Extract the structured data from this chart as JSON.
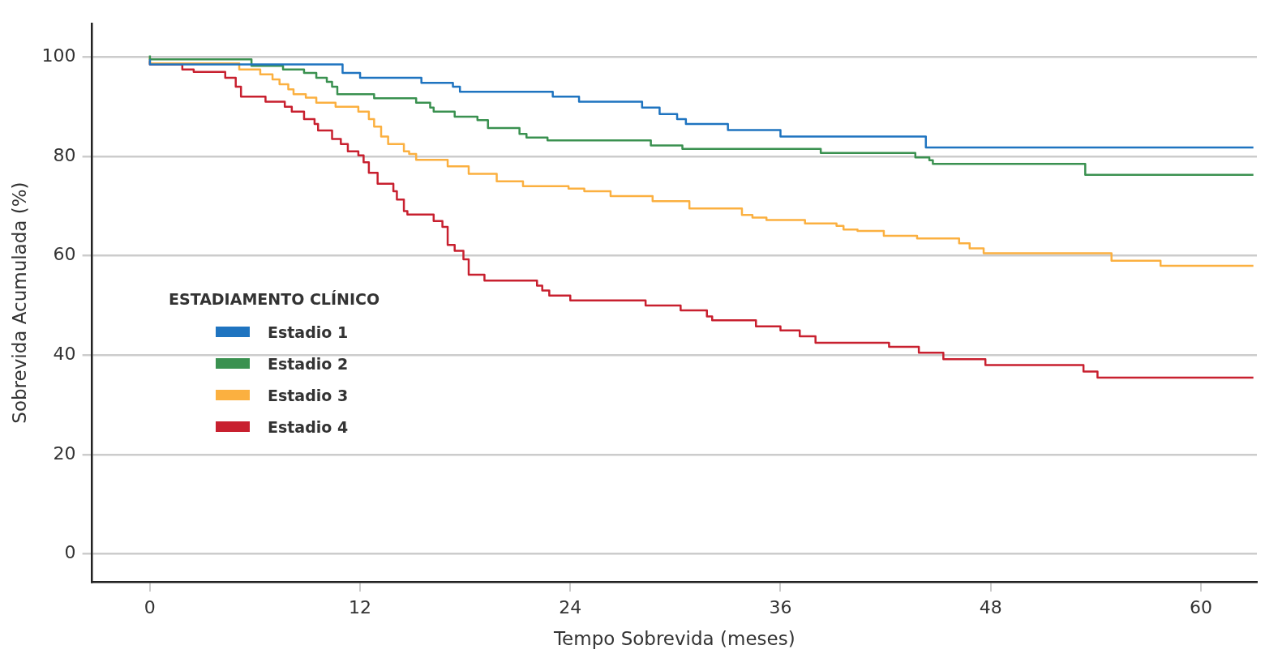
{
  "chart_data": {
    "type": "step",
    "xlabel": "Tempo Sobrevida (meses)",
    "ylabel": "Sobrevida Acumulada (%)",
    "legend_title": "ESTADIAMENTO CLÍNICO",
    "legend": "center left",
    "grid": "y",
    "xlim": [
      -3.3,
      63.2
    ],
    "ylim": [
      -5.6,
      106.7
    ],
    "xticks": [
      0,
      12,
      24,
      36,
      48,
      60
    ],
    "yticks": [
      0,
      20,
      40,
      60,
      80,
      100
    ],
    "series": [
      {
        "name": "Estadio 1",
        "color": "#1f74c0",
        "x": [
          0,
          11,
          12,
          15.5,
          17.3,
          17.7,
          23,
          24.5,
          28.1,
          29.1,
          30.1,
          30.6,
          33,
          36,
          44.3,
          61.3,
          63
        ],
        "values": [
          99.5,
          98.5,
          96.8,
          95.8,
          94.8,
          94,
          93,
          92,
          91,
          89.8,
          88.5,
          87.5,
          86.5,
          85.3,
          84,
          81.8,
          81.8
        ]
      },
      {
        "name": "Estadio 2",
        "color": "#3a9150",
        "x": [
          0,
          5.8,
          7.6,
          8.8,
          9.5,
          10.1,
          10.4,
          10.7,
          12.8,
          15.2,
          16,
          16.2,
          17.4,
          18.7,
          19.3,
          21.1,
          21.5,
          22.7,
          28.6,
          30.4,
          38.3,
          43.7,
          44.5,
          44.7,
          53.4,
          61.2,
          63
        ],
        "values": [
          100.3,
          99.5,
          98.2,
          97.5,
          96.8,
          95.8,
          95,
          94,
          92.5,
          91.7,
          90.8,
          89.8,
          89,
          88,
          87.3,
          85.7,
          84.5,
          83.8,
          83.2,
          82.2,
          81.5,
          80.7,
          79.8,
          79.2,
          78.5,
          76.3,
          76.3
        ]
      },
      {
        "name": "Estadio 3",
        "color": "#fbb040",
        "x": [
          0,
          5.1,
          6.3,
          7,
          7.4,
          7.9,
          8.2,
          8.9,
          9.5,
          10.6,
          11.9,
          12.5,
          12.8,
          13.2,
          13.6,
          14.5,
          14.8,
          15.2,
          17,
          18.2,
          19.8,
          21.3,
          23.9,
          24.8,
          26.3,
          28.7,
          30.8,
          33.8,
          34.4,
          35.2,
          37.4,
          39.2,
          39.6,
          40.4,
          41.9,
          43.8,
          46.2,
          46.8,
          47.6,
          54.9,
          57.7,
          59.8,
          63
        ],
        "values": [
          100,
          98.7,
          97.5,
          96.5,
          95.5,
          94.5,
          93.5,
          92.5,
          91.8,
          90.8,
          90,
          89,
          87.5,
          86,
          84,
          82.5,
          81,
          80.5,
          79.3,
          78,
          76.5,
          75,
          74,
          73.5,
          73,
          72,
          71,
          69.5,
          68.2,
          67.7,
          67.2,
          66.5,
          66,
          65.3,
          65,
          64,
          63.5,
          62.5,
          61.5,
          60.5,
          59,
          58,
          58
        ]
      },
      {
        "name": "Estadio 4",
        "color": "#c8202f",
        "x": [
          0,
          1.85,
          2.5,
          4.3,
          4.9,
          5.2,
          6.6,
          7.7,
          8.1,
          8.8,
          9.4,
          9.6,
          10.4,
          10.9,
          11.3,
          11.9,
          12.2,
          12.5,
          13,
          13.9,
          14.1,
          14.5,
          14.7,
          16.2,
          16.7,
          17,
          17.4,
          17.9,
          18.2,
          19.1,
          22.1,
          22.4,
          22.8,
          24,
          28.3,
          30.3,
          31.8,
          32.1,
          34.6,
          36,
          37.1,
          38,
          42.2,
          43.9,
          45.3,
          47.7,
          53.3,
          54.1,
          55.8,
          63
        ],
        "values": [
          99.2,
          98.5,
          97.5,
          97,
          95.8,
          94,
          92,
          91,
          90,
          89,
          87.5,
          86.5,
          85.2,
          83.5,
          82.5,
          81,
          80.2,
          78.8,
          76.7,
          74.5,
          73,
          71.3,
          69,
          68.3,
          67,
          65.8,
          62.2,
          61,
          59.3,
          56.2,
          55,
          54,
          53,
          52,
          51,
          50,
          49,
          47.8,
          47,
          45.8,
          45,
          43.8,
          42.5,
          41.7,
          40.5,
          39.2,
          38,
          36.7,
          35.5,
          35.5
        ]
      }
    ]
  }
}
